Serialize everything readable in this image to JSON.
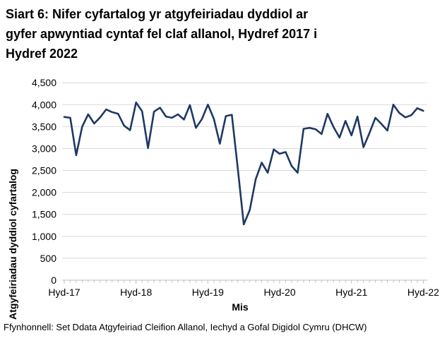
{
  "header": {
    "title": "Siart 6: Nifer cyfartalog yr atgyfeiriadau dyddiol ar gyfer apwyntiad cyntaf fel claf allanol, Hydref 2017 i Hydref 2022",
    "title_lines": [
      "Siart 6: Nifer cyfartalog yr atgyfeiriadau dyddiol ar",
      "gyfer apwyntiad cyntaf fel claf allanol, Hydref 2017 i",
      "Hydref 2022"
    ]
  },
  "chart_data": {
    "type": "line",
    "title": "Siart 6: Nifer cyfartalog yr atgyfeiriadau dyddiol ar gyfer apwyntiad cyntaf fel claf allanol, Hydref 2017 i Hydref 2022",
    "xlabel": "Mis",
    "ylabel": "Atgyfeiriadau dyddiol cyfartalog",
    "ylim": [
      0,
      4500
    ],
    "y_ticks": [
      0,
      500,
      1000,
      1500,
      2000,
      2500,
      3000,
      3500,
      4000,
      4500
    ],
    "y_tick_labels": [
      "0",
      "500",
      "1,000",
      "1,500",
      "2,000",
      "2,500",
      "3,000",
      "3,500",
      "4,000",
      "4,500"
    ],
    "x_tick_labels": [
      "Hyd-17",
      "Hyd-18",
      "Hyd-19",
      "Hyd-20",
      "Hyd-21",
      "Hyd-22"
    ],
    "x_tick_indices": [
      0,
      12,
      24,
      36,
      48,
      60
    ],
    "grid": "horizontal",
    "legend": "none",
    "line_color": "#1F3864",
    "series": [
      {
        "name": "Atgyfeiriadau dyddiol cyfartalog",
        "values": [
          3720,
          3700,
          2850,
          3500,
          3780,
          3570,
          3710,
          3890,
          3830,
          3790,
          3520,
          3420,
          4050,
          3850,
          3010,
          3840,
          3930,
          3730,
          3700,
          3780,
          3660,
          3990,
          3470,
          3670,
          4000,
          3680,
          3110,
          3740,
          3770,
          2550,
          1270,
          1600,
          2300,
          2680,
          2450,
          2980,
          2880,
          2920,
          2600,
          2450,
          3450,
          3470,
          3440,
          3330,
          3790,
          3490,
          3250,
          3630,
          3300,
          3730,
          3030,
          3350,
          3700,
          3560,
          3410,
          4000,
          3810,
          3710,
          3760,
          3920,
          3860
        ]
      }
    ]
  },
  "footer": {
    "source": "Ffynhonnell: Set Ddata Atgyfeiriad Cleifion Allanol, Iechyd a Gofal Digidol Cymru (DHCW)"
  },
  "colors": {
    "line": "#1F3864",
    "gridline": "#D9D9D9",
    "axis": "#BFBFBF",
    "text": "#000000",
    "background": "#FFFFFF"
  }
}
